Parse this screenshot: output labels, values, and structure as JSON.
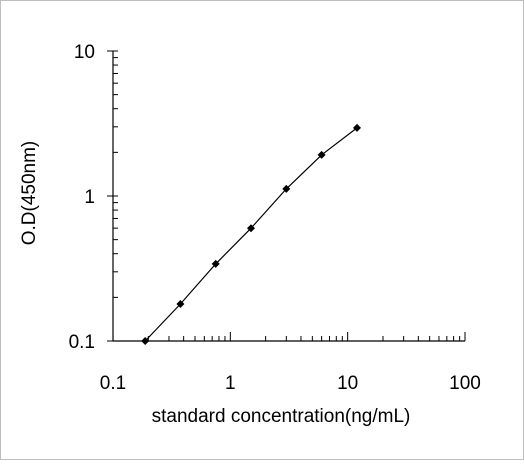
{
  "chart_data": {
    "type": "line",
    "title": "",
    "xlabel": "standard concentration(ng/mL)",
    "ylabel": "O.D(450nm)",
    "x_scale": "log",
    "y_scale": "log",
    "xlim": [
      0.1,
      100
    ],
    "ylim": [
      0.1,
      10
    ],
    "x_ticks": [
      0.1,
      1,
      10,
      100
    ],
    "y_ticks": [
      0.1,
      1,
      10
    ],
    "x_tick_labels": [
      "0.1",
      "1",
      "10",
      "100"
    ],
    "y_tick_labels": [
      "0.1",
      "1",
      "10"
    ],
    "grid": false,
    "legend": "none",
    "series": [
      {
        "x": [
          0.188,
          0.375,
          0.75,
          1.5,
          3,
          6,
          12
        ],
        "y": [
          0.1,
          0.18,
          0.34,
          0.6,
          1.12,
          1.92,
          2.95
        ],
        "color": "#000000",
        "marker": "diamond"
      }
    ]
  }
}
